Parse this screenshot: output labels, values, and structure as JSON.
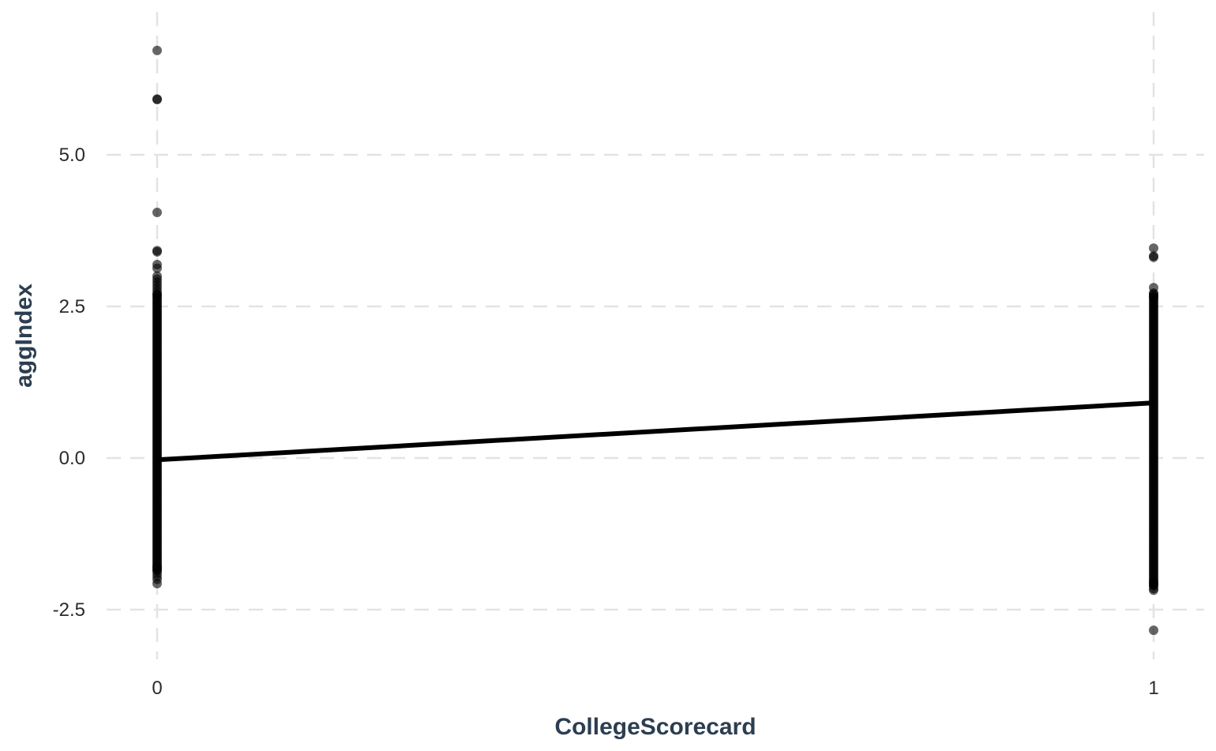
{
  "chart_data": {
    "type": "scatter",
    "title": "",
    "xlabel": "CollegeScorecard",
    "ylabel": "aggIndex",
    "x_ticks": [
      "0",
      "1"
    ],
    "y_ticks": [
      "5.0",
      "2.5",
      "0.0",
      "-2.5"
    ],
    "xlim": [
      -0.04,
      1.05
    ],
    "ylim": [
      -3.25,
      7.25
    ],
    "grid": true,
    "grid_style": "dashed",
    "point_color": "#000000",
    "point_opacity": 0.6,
    "line_color": "#000000",
    "fit_line": {
      "x": [
        0,
        1
      ],
      "y": [
        -0.03,
        0.91
      ]
    },
    "series": [
      {
        "x": 0,
        "points": [
          6.72,
          5.91,
          5.92,
          4.05,
          3.42,
          3.4,
          3.19,
          3.13,
          3.0,
          2.95,
          2.9,
          2.85,
          2.8,
          2.75,
          2.7,
          -1.8,
          -1.85,
          -1.9,
          -1.95,
          -2.0,
          -2.07
        ],
        "dense_range": [
          -1.85,
          2.7
        ]
      },
      {
        "x": 1,
        "points": [
          3.46,
          3.33,
          3.31,
          2.81,
          2.72,
          2.7,
          2.68,
          2.65,
          -2.05,
          -2.1,
          -2.15,
          -2.18,
          -2.84
        ],
        "dense_range": [
          -2.1,
          2.65
        ]
      }
    ]
  }
}
